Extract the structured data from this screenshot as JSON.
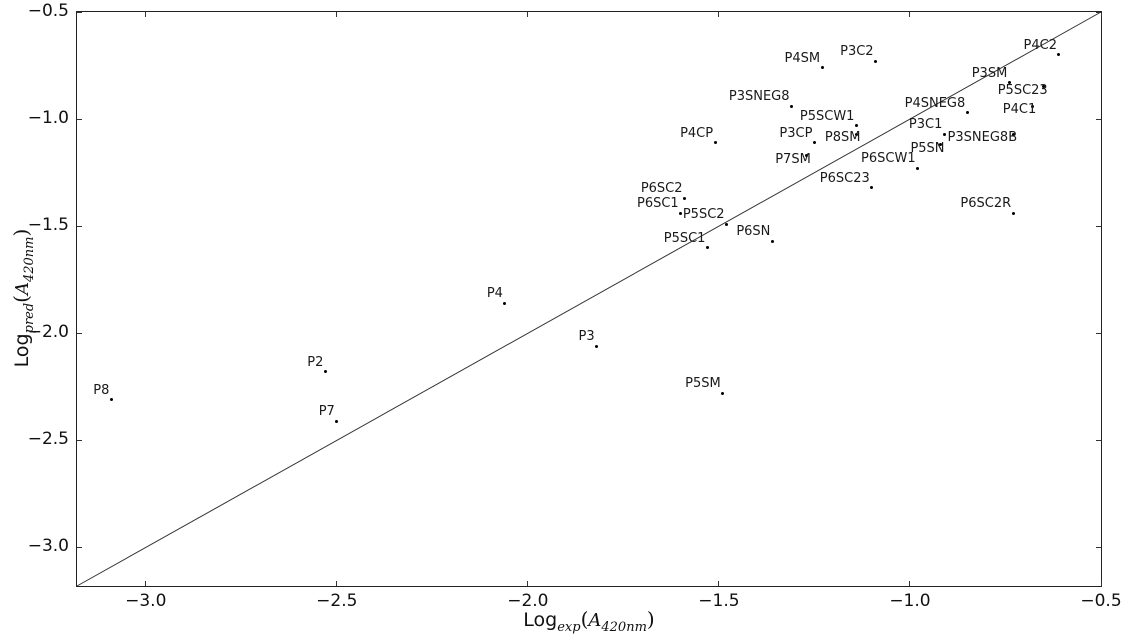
{
  "chart_data": {
    "type": "scatter",
    "title": "",
    "grid": false,
    "legend": null,
    "xlabel": {
      "prefix": "Log",
      "sub": "exp",
      "open": "(",
      "var": "A",
      "varsub": "420nm",
      "close": ")"
    },
    "ylabel": {
      "prefix": "Log",
      "sub": "pred",
      "open": "(",
      "var": "A",
      "varsub": "420nm",
      "close": ")"
    },
    "xlim": [
      -3.18,
      -0.5
    ],
    "ylim": [
      -3.18,
      -0.5
    ],
    "xticks": [
      {
        "value": -3.0,
        "label": "−3.0"
      },
      {
        "value": -2.5,
        "label": "−2.5"
      },
      {
        "value": -2.0,
        "label": "−2.0"
      },
      {
        "value": -1.5,
        "label": "−1.5"
      },
      {
        "value": -1.0,
        "label": "−1.0"
      },
      {
        "value": -0.5,
        "label": "−0.5"
      }
    ],
    "yticks": [
      {
        "value": -0.5,
        "label": "−0.5"
      },
      {
        "value": -1.0,
        "label": "−1.0"
      },
      {
        "value": -1.5,
        "label": "−1.5"
      },
      {
        "value": -2.0,
        "label": "−2.0"
      },
      {
        "value": -2.5,
        "label": "−2.5"
      },
      {
        "value": -3.0,
        "label": "−3.0"
      }
    ],
    "identity_line": {
      "from": [
        -3.18,
        -3.18
      ],
      "to": [
        -0.5,
        -0.5
      ],
      "color": "#333333",
      "width": 1
    },
    "marker": {
      "shape": "dot",
      "size": 3,
      "color": "#000000"
    },
    "points": [
      {
        "label": "P8",
        "x": -3.09,
        "y": -2.31,
        "label_pos": "ul"
      },
      {
        "label": "P2",
        "x": -2.53,
        "y": -2.18,
        "label_pos": "ul"
      },
      {
        "label": "P7",
        "x": -2.5,
        "y": -2.41,
        "label_pos": "ul"
      },
      {
        "label": "P4",
        "x": -2.06,
        "y": -1.86,
        "label_pos": "ul"
      },
      {
        "label": "P3",
        "x": -1.82,
        "y": -2.06,
        "label_pos": "ul"
      },
      {
        "label": "P5SM",
        "x": -1.49,
        "y": -2.28,
        "label_pos": "ul"
      },
      {
        "label": "P6SC2",
        "x": -1.59,
        "y": -1.37,
        "label_pos": "ul"
      },
      {
        "label": "P6SC1",
        "x": -1.6,
        "y": -1.44,
        "label_pos": "ul"
      },
      {
        "label": "P5SC2",
        "x": -1.48,
        "y": -1.49,
        "label_pos": "ul"
      },
      {
        "label": "P5SC1",
        "x": -1.53,
        "y": -1.6,
        "label_pos": "ul"
      },
      {
        "label": "P6SN",
        "x": -1.36,
        "y": -1.57,
        "label_pos": "ul"
      },
      {
        "label": "P6SC23",
        "x": -1.1,
        "y": -1.32,
        "label_pos": "ul"
      },
      {
        "label": "P6SCW1",
        "x": -0.98,
        "y": -1.23,
        "label_pos": "ul"
      },
      {
        "label": "P6SC2R",
        "x": -0.73,
        "y": -1.44,
        "label_pos": "ul"
      },
      {
        "label": "P4CP",
        "x": -1.51,
        "y": -1.11,
        "label_pos": "ul"
      },
      {
        "label": "P3CP",
        "x": -1.25,
        "y": -1.11,
        "label_pos": "ul"
      },
      {
        "label": "P3SNEG8",
        "x": -1.31,
        "y": -0.94,
        "label_pos": "ul"
      },
      {
        "label": "P5SCW1",
        "x": -1.14,
        "y": -1.03,
        "label_pos": "ul"
      },
      {
        "label": "P8SM",
        "x": -1.14,
        "y": -1.07,
        "label_pos": "ll"
      },
      {
        "label": "P7SM",
        "x": -1.27,
        "y": -1.17,
        "label_pos": "ll"
      },
      {
        "label": "P4SM",
        "x": -1.23,
        "y": -0.76,
        "label_pos": "ul"
      },
      {
        "label": "P3C2",
        "x": -1.09,
        "y": -0.73,
        "label_pos": "ul"
      },
      {
        "label": "P4C2",
        "x": -0.61,
        "y": -0.7,
        "label_pos": "ul"
      },
      {
        "label": "P3SM",
        "x": -0.74,
        "y": -0.83,
        "label_pos": "ul"
      },
      {
        "label": "P5SC23",
        "x": -0.65,
        "y": -0.85,
        "label_pos": "ll"
      },
      {
        "label": "P4SNEG8",
        "x": -0.85,
        "y": -0.97,
        "label_pos": "ul"
      },
      {
        "label": "P4C1",
        "x": -0.68,
        "y": -0.94,
        "label_pos": "ll"
      },
      {
        "label": "P3C1",
        "x": -0.91,
        "y": -1.07,
        "label_pos": "ul"
      },
      {
        "label": "P3SNEG8B",
        "x": -0.73,
        "y": -1.07,
        "label_pos": "ll"
      },
      {
        "label": "P5SN",
        "x": -0.92,
        "y": -1.12,
        "label_pos": "ll"
      }
    ]
  }
}
